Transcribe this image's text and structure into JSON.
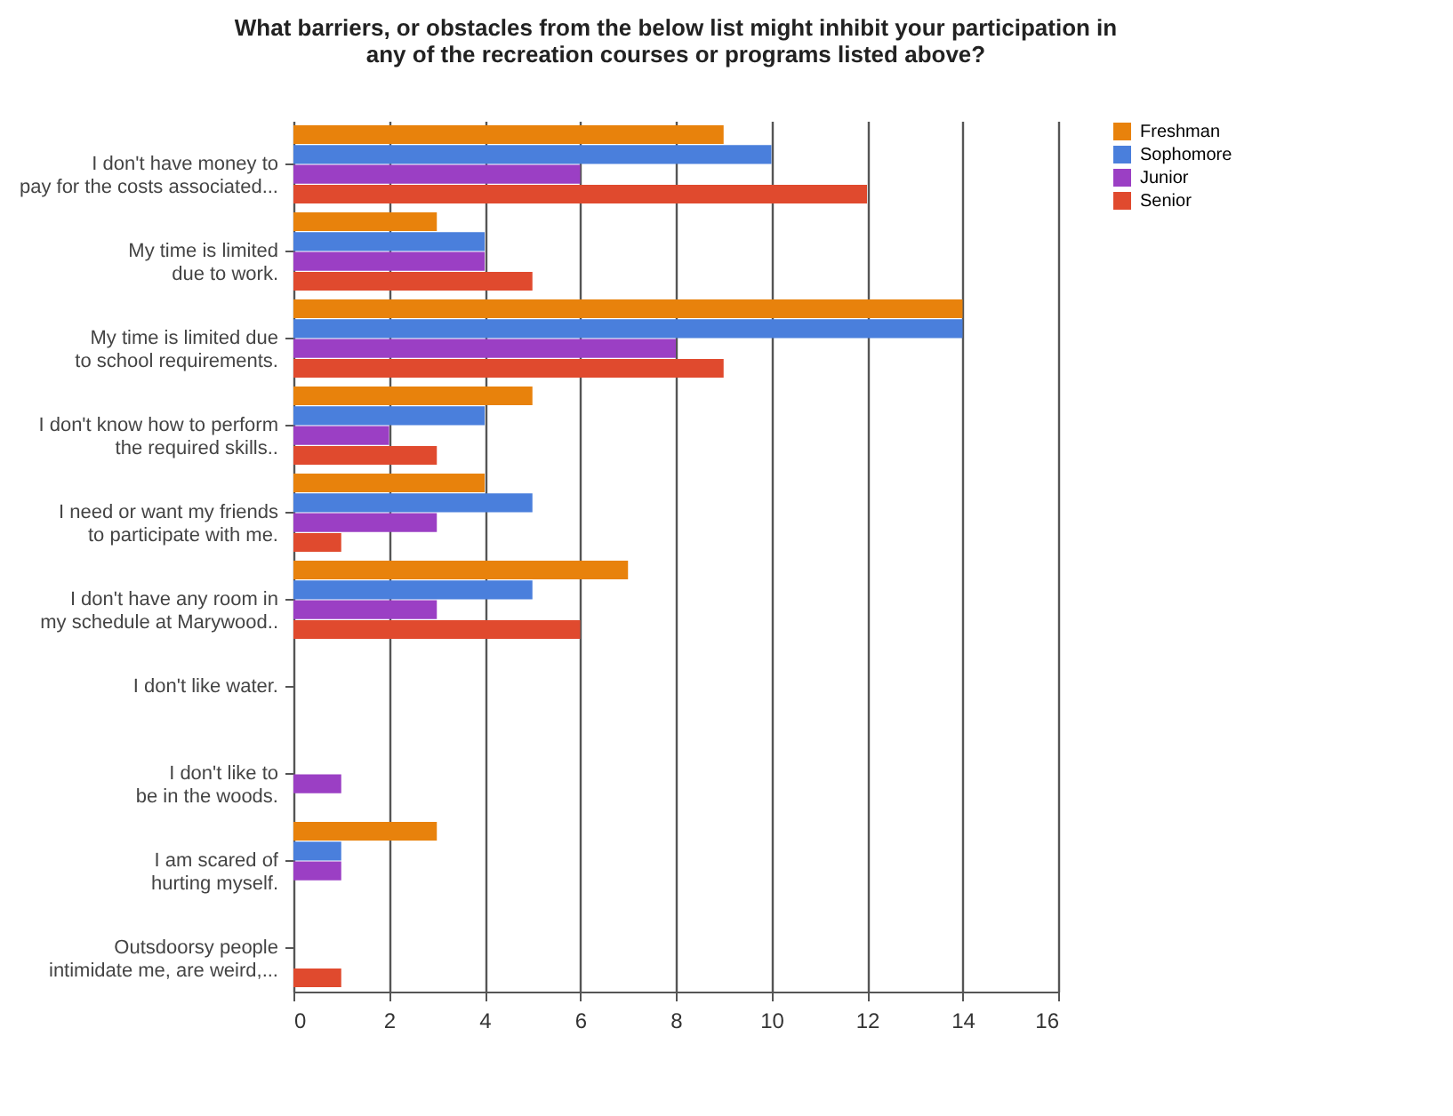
{
  "chart_data": {
    "type": "bar",
    "orientation": "horizontal",
    "title": "What barriers, or obstacles from the below list might inhibit your participation in\nany of the recreation courses or programs listed above?",
    "categories": [
      "I don't have money to\npay for the costs associated...",
      "My time is limited\ndue to work.",
      "My time is limited due\nto school requirements.",
      "I don't know how to perform\nthe required skills..",
      "I need or want my friends\nto participate with me.",
      "I don't have any room in\nmy schedule at Marywood..",
      "I don't like water.",
      "I don't like to\nbe in the woods.",
      "I am scared of\nhurting myself.",
      "Outsdoorsy people\nintimidate me, are weird,..."
    ],
    "series": [
      {
        "name": "Freshman",
        "color": "#e8820c",
        "values": [
          9,
          3,
          14,
          5,
          4,
          7,
          0,
          0,
          3,
          0
        ]
      },
      {
        "name": "Sophomore",
        "color": "#4a7fdc",
        "values": [
          10,
          4,
          14,
          4,
          5,
          5,
          0,
          0,
          1,
          0
        ]
      },
      {
        "name": "Junior",
        "color": "#9b3fc4",
        "values": [
          6,
          4,
          8,
          2,
          3,
          3,
          0,
          1,
          1,
          0
        ]
      },
      {
        "name": "Senior",
        "color": "#e04a2e",
        "values": [
          12,
          5,
          9,
          3,
          1,
          6,
          0,
          0,
          0,
          1
        ]
      }
    ],
    "xlim": [
      0,
      16
    ],
    "xticks": [
      0,
      2,
      4,
      6,
      8,
      10,
      12,
      14,
      16
    ],
    "grid": "x",
    "legend": "right"
  }
}
